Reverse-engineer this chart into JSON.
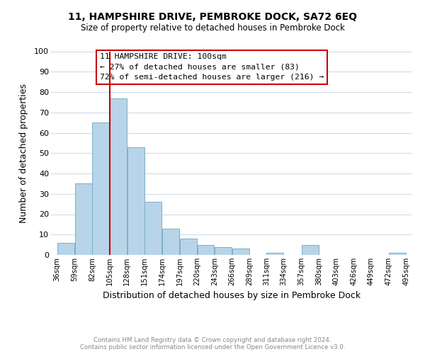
{
  "title1": "11, HAMPSHIRE DRIVE, PEMBROKE DOCK, SA72 6EQ",
  "title2": "Size of property relative to detached houses in Pembroke Dock",
  "xlabel": "Distribution of detached houses by size in Pembroke Dock",
  "ylabel": "Number of detached properties",
  "bar_color": "#b8d4e8",
  "bar_edge_color": "#7aafc8",
  "bins": [
    36,
    59,
    82,
    105,
    128,
    151,
    174,
    197,
    220,
    243,
    266,
    289,
    311,
    334,
    357,
    380,
    403,
    426,
    449,
    472,
    495
  ],
  "counts": [
    6,
    35,
    65,
    77,
    53,
    26,
    13,
    8,
    5,
    4,
    3,
    0,
    1,
    0,
    5,
    0,
    0,
    0,
    0,
    1
  ],
  "tick_labels": [
    "36sqm",
    "59sqm",
    "82sqm",
    "105sqm",
    "128sqm",
    "151sqm",
    "174sqm",
    "197sqm",
    "220sqm",
    "243sqm",
    "266sqm",
    "289sqm",
    "311sqm",
    "334sqm",
    "357sqm",
    "380sqm",
    "403sqm",
    "426sqm",
    "449sqm",
    "472sqm",
    "495sqm"
  ],
  "vline_x": 105,
  "vline_color": "#cc0000",
  "annotation_title": "11 HAMPSHIRE DRIVE: 100sqm",
  "annotation_line1": "← 27% of detached houses are smaller (83)",
  "annotation_line2": "72% of semi-detached houses are larger (216) →",
  "ylim": [
    0,
    100
  ],
  "yticks": [
    0,
    10,
    20,
    30,
    40,
    50,
    60,
    70,
    80,
    90,
    100
  ],
  "footer1": "Contains HM Land Registry data © Crown copyright and database right 2024.",
  "footer2": "Contains public sector information licensed under the Open Government Licence v3.0.",
  "background_color": "#ffffff",
  "grid_color": "#d0dce8"
}
